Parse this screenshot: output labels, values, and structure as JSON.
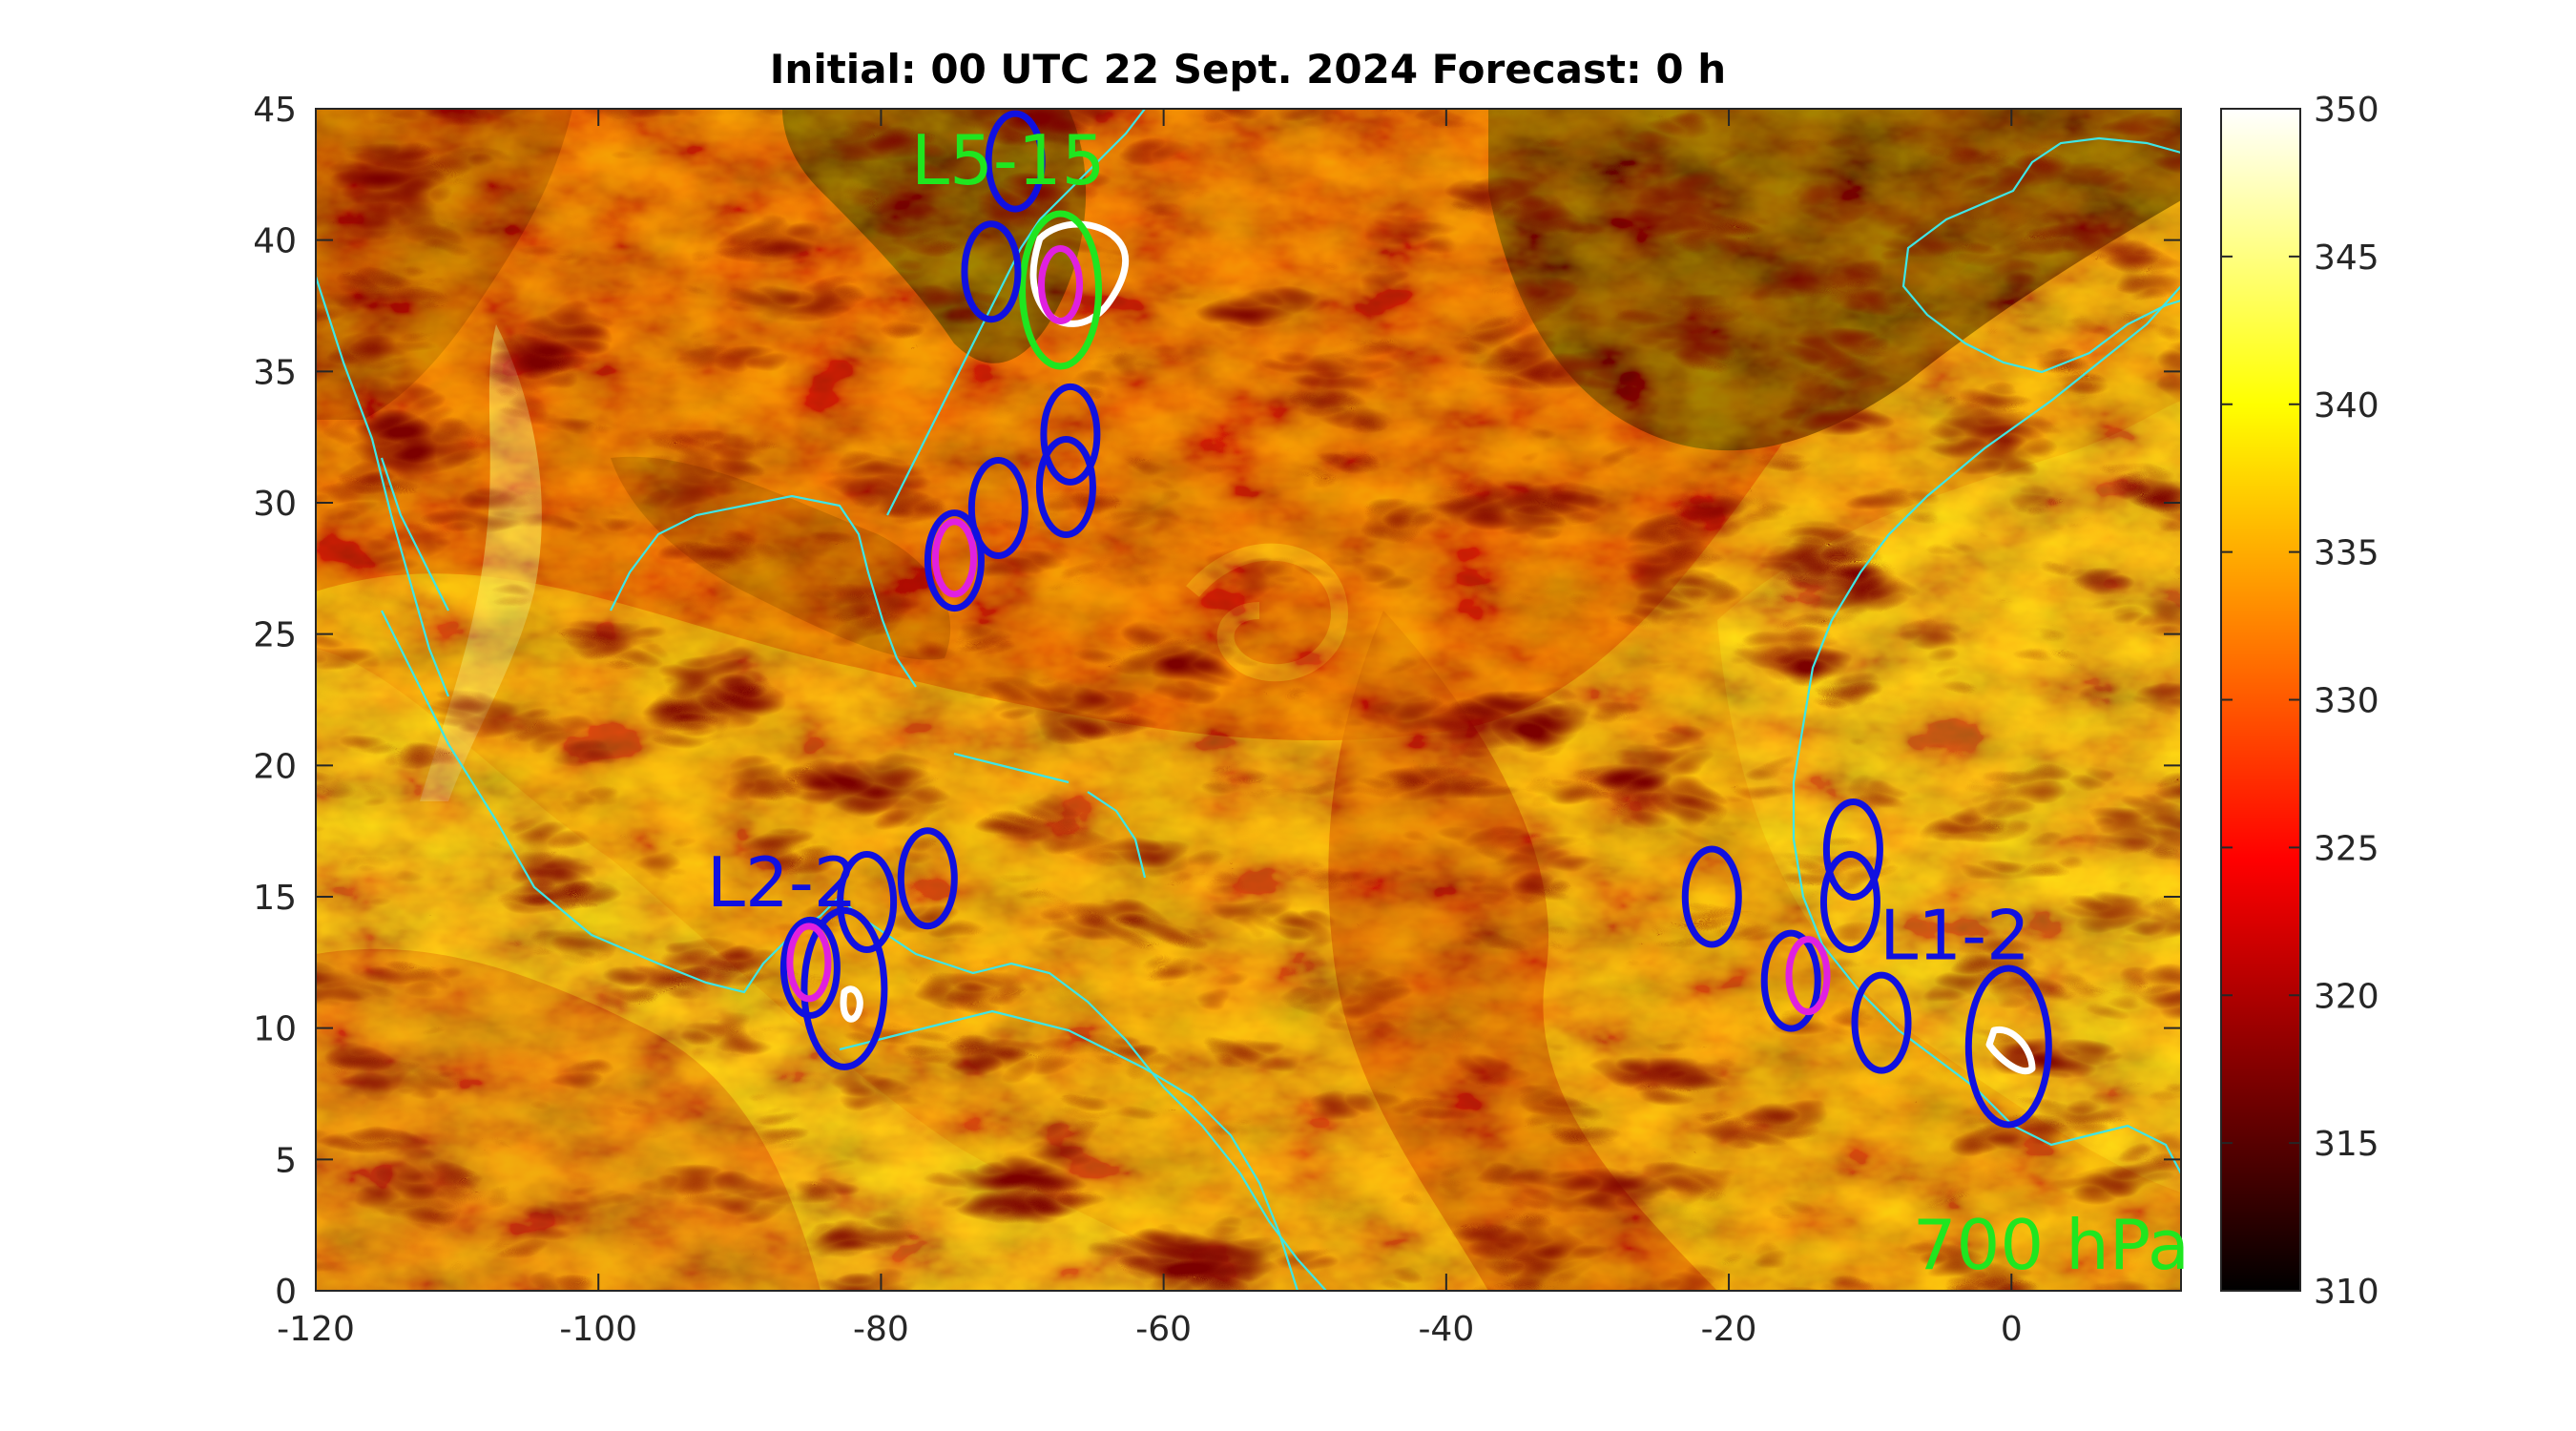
{
  "title": "Initial: 00 UTC 22 Sept. 2024 Forecast: 0 h",
  "level_label": "700 hPa",
  "level_label_color": "#1fe61f",
  "map": {
    "x_ticks": [
      "-120",
      "-100",
      "-80",
      "-60",
      "-40",
      "-20",
      "0"
    ],
    "y_ticks": [
      "0",
      "5",
      "10",
      "15",
      "20",
      "25",
      "30",
      "35",
      "40",
      "45"
    ],
    "lon_range": [
      -120,
      12
    ],
    "lat_range": [
      0,
      45
    ],
    "field_value_range": [
      310,
      350
    ],
    "coastline_color": "#3ee6e6"
  },
  "colorbar": {
    "ticks": [
      "310",
      "315",
      "320",
      "325",
      "330",
      "335",
      "340",
      "345",
      "350"
    ],
    "colormap": "hot",
    "range": [
      310,
      350
    ]
  },
  "markers": {
    "labels": [
      {
        "text": "L5-15",
        "color": "#1fe61f",
        "lon": -71,
        "lat": 43
      },
      {
        "text": "L2-2",
        "color": "#1010e0",
        "lon": -87,
        "lat": 15.5
      },
      {
        "text": "L1-2",
        "color": "#1010e0",
        "lon": -4,
        "lat": 13.5
      }
    ],
    "blue_ellipses": [
      {
        "lon": -70.5,
        "lat": 43.0
      },
      {
        "lon": -72.2,
        "lat": 38.8
      },
      {
        "lon": -66.6,
        "lat": 32.6
      },
      {
        "lon": -66.9,
        "lat": 30.6
      },
      {
        "lon": -71.7,
        "lat": 29.8
      },
      {
        "lon": -74.8,
        "lat": 27.8
      },
      {
        "lon": -76.7,
        "lat": 15.7
      },
      {
        "lon": -81.0,
        "lat": 14.8
      },
      {
        "lon": -85.0,
        "lat": 12.3
      },
      {
        "lon": -82.6,
        "lat": 11.5
      },
      {
        "lon": -21.2,
        "lat": 15.0
      },
      {
        "lon": -11.2,
        "lat": 16.8
      },
      {
        "lon": -11.4,
        "lat": 14.8
      },
      {
        "lon": -15.6,
        "lat": 11.8
      },
      {
        "lon": -9.2,
        "lat": 10.2
      },
      {
        "lon": -0.2,
        "lat": 9.3
      }
    ],
    "magenta_ellipses": [
      {
        "lon": -67.3,
        "lat": 38.3
      },
      {
        "lon": -74.8,
        "lat": 27.9
      },
      {
        "lon": -85.1,
        "lat": 12.5
      },
      {
        "lon": -14.4,
        "lat": 12.0
      }
    ],
    "green_ellipses": [
      {
        "lon": -67.3,
        "lat": 38.1
      }
    ],
    "colors": {
      "blue": "#1010e0",
      "magenta": "#e020e0",
      "green": "#1fe61f",
      "white": "#ffffff"
    }
  }
}
